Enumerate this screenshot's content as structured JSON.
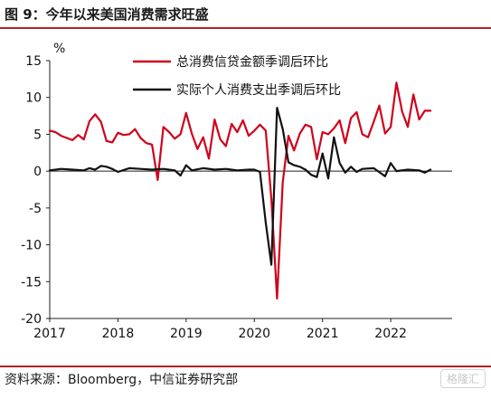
{
  "header": {
    "title": "图 9：今年以来美国消费需求旺盛"
  },
  "footer": {
    "source": "资料来源：Bloomberg，中信证券研究部",
    "watermark": "格隆汇"
  },
  "chart_data": {
    "type": "line",
    "ylabel": "%",
    "ylim": [
      -20,
      15
    ],
    "yticks": [
      15,
      10,
      5,
      0,
      -5,
      -10,
      -15,
      -20
    ],
    "xlim": [
      2017,
      2022.9
    ],
    "xticks": [
      "2017",
      "2018",
      "2019",
      "2020",
      "2021",
      "2022"
    ],
    "grid": false,
    "legend_position": "top-right",
    "colors": {
      "series1": "#d0021b",
      "series2": "#111111"
    },
    "series": [
      {
        "name": "总消费信贷金额季调后环比",
        "x": [
          2017.0,
          2017.083,
          2017.167,
          2017.25,
          2017.333,
          2017.417,
          2017.5,
          2017.583,
          2017.667,
          2017.75,
          2017.833,
          2017.917,
          2018.0,
          2018.083,
          2018.167,
          2018.25,
          2018.333,
          2018.417,
          2018.5,
          2018.583,
          2018.667,
          2018.75,
          2018.833,
          2018.917,
          2019.0,
          2019.083,
          2019.167,
          2019.25,
          2019.333,
          2019.417,
          2019.5,
          2019.583,
          2019.667,
          2019.75,
          2019.833,
          2019.917,
          2020.0,
          2020.083,
          2020.167,
          2020.25,
          2020.333,
          2020.417,
          2020.5,
          2020.583,
          2020.667,
          2020.75,
          2020.833,
          2020.917,
          2021.0,
          2021.083,
          2021.167,
          2021.25,
          2021.333,
          2021.417,
          2021.5,
          2021.583,
          2021.667,
          2021.75,
          2021.833,
          2021.917,
          2022.0,
          2022.083,
          2022.167,
          2022.25,
          2022.333,
          2022.417,
          2022.5,
          2022.583
        ],
        "values": [
          5.5,
          5.3,
          4.8,
          4.5,
          4.2,
          4.9,
          4.3,
          6.8,
          7.7,
          6.7,
          4.1,
          3.9,
          5.2,
          4.9,
          5.0,
          5.7,
          4.5,
          3.8,
          3.6,
          -1.2,
          6.0,
          5.3,
          4.4,
          5.0,
          7.9,
          5.1,
          3.0,
          4.6,
          1.7,
          7.0,
          4.3,
          3.4,
          6.4,
          5.3,
          6.9,
          4.8,
          5.5,
          6.3,
          5.5,
          -3.8,
          -17.3,
          -1.5,
          4.8,
          2.8,
          5.1,
          6.3,
          6.0,
          1.6,
          5.3,
          5.0,
          5.8,
          6.9,
          3.8,
          7.2,
          8.0,
          5.0,
          4.6,
          6.7,
          8.9,
          5.1,
          6.0,
          12.0,
          8.1,
          6.0,
          10.4,
          7.0,
          8.2,
          8.2
        ]
      },
      {
        "name": "实际个人消费支出季调后环比",
        "x": [
          2017.0,
          2017.167,
          2017.333,
          2017.5,
          2017.583,
          2017.667,
          2017.75,
          2017.833,
          2017.917,
          2018.0,
          2018.167,
          2018.333,
          2018.5,
          2018.667,
          2018.833,
          2018.917,
          2019.0,
          2019.083,
          2019.25,
          2019.417,
          2019.583,
          2019.75,
          2019.917,
          2020.0,
          2020.083,
          2020.167,
          2020.25,
          2020.333,
          2020.417,
          2020.5,
          2020.583,
          2020.667,
          2020.75,
          2020.833,
          2020.917,
          2021.0,
          2021.083,
          2021.167,
          2021.25,
          2021.333,
          2021.417,
          2021.5,
          2021.583,
          2021.75,
          2021.917,
          2022.0,
          2022.083,
          2022.25,
          2022.417,
          2022.5,
          2022.583
        ],
        "values": [
          0.1,
          0.3,
          0.2,
          0.1,
          0.4,
          0.2,
          0.7,
          0.6,
          0.3,
          -0.1,
          0.4,
          0.3,
          0.2,
          0.3,
          0.1,
          -0.6,
          0.8,
          0.1,
          0.4,
          0.2,
          0.3,
          0.1,
          0.2,
          0.2,
          -0.1,
          -7.0,
          -12.7,
          8.6,
          5.7,
          1.2,
          0.8,
          0.6,
          0.2,
          -0.5,
          -0.8,
          2.4,
          -1.0,
          4.6,
          1.1,
          -0.2,
          0.6,
          -0.1,
          0.3,
          0.4,
          -0.7,
          1.1,
          0.0,
          0.2,
          0.1,
          -0.2,
          0.2
        ]
      }
    ]
  }
}
